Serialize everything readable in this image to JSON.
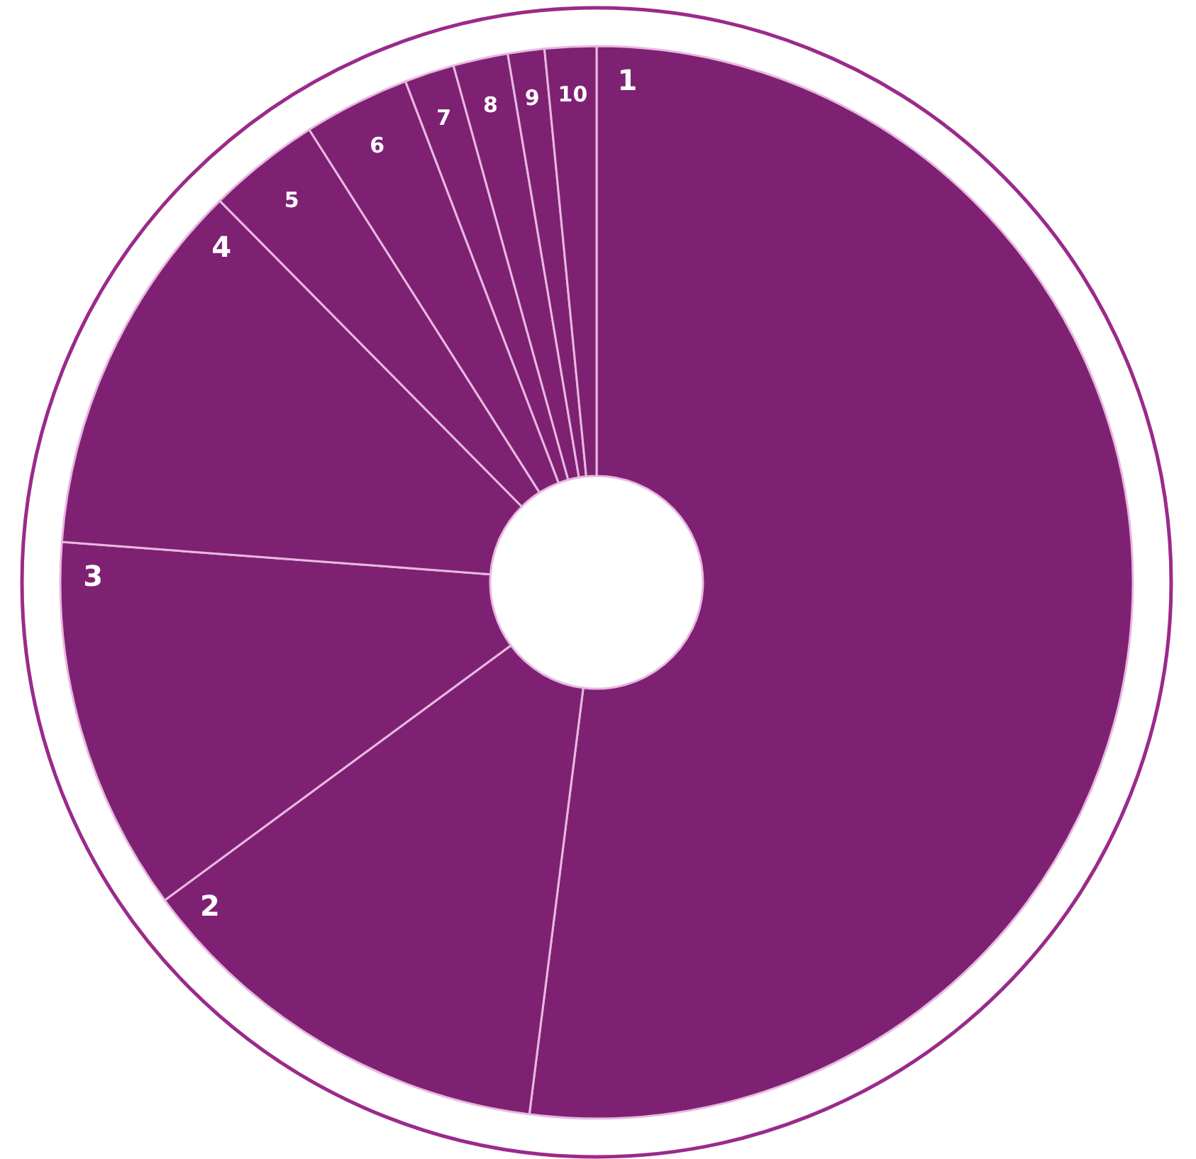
{
  "chart_data": {
    "type": "donut",
    "categories": [
      "1",
      "2",
      "3",
      "4",
      "5",
      "6",
      "7",
      "8",
      "9",
      "10"
    ],
    "values": [
      52.0,
      12.9,
      11.3,
      11.4,
      3.4,
      3.2,
      1.5,
      1.65,
      1.1,
      1.55
    ],
    "colors": [
      "#7e2173",
      "#7e2173",
      "#7e2173",
      "#7e2173",
      "#7e2173",
      "#7e2173",
      "#7e2173",
      "#7e2173",
      "#7e2173",
      "#7e2173"
    ]
  }
}
